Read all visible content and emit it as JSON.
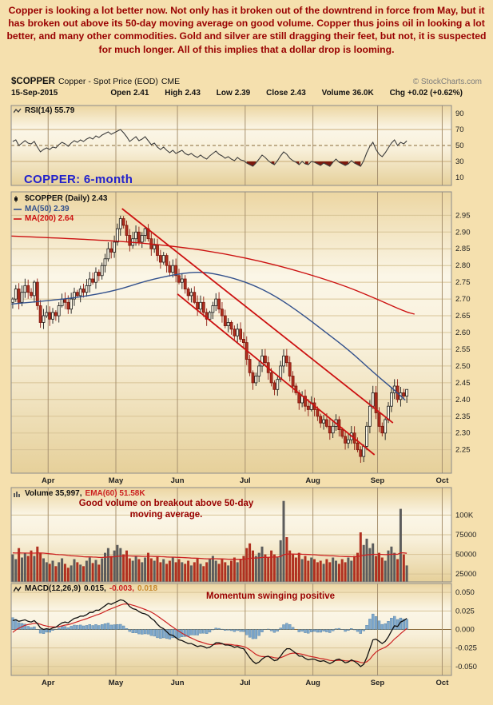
{
  "commentary": "Copper is looking a lot better now. Not only has it broken out of the downtrend in force from May, but it has broken out above its 50-day moving average on good volume. Copper thus joins oil in looking a lot better, and many other commodities. Gold and silver are still dragging their feet, but not, it is suspected for much longer. All of this implies that a dollar drop is looming.",
  "title": {
    "symbol": "$COPPER",
    "name": "Copper - Spot Price (EOD)",
    "exchange": "CME",
    "copyright": "© StockCharts.com"
  },
  "quote": {
    "date": "15-Sep-2015",
    "fields": [
      {
        "label": "Open",
        "value": "2.41"
      },
      {
        "label": "High",
        "value": "2.43"
      },
      {
        "label": "Low",
        "value": "2.39"
      },
      {
        "label": "Close",
        "value": "2.43"
      },
      {
        "label": "Volume",
        "value": "36.0K"
      },
      {
        "label": "Chg",
        "value": "+0.02 (+0.62%)"
      }
    ]
  },
  "legends": {
    "rsi": "RSI(14) 55.79",
    "price": "$COPPER (Daily) 2.43",
    "ma50": "MA(50) 2.39",
    "ma200": "MA(200) 2.64",
    "volume": "Volume 35,997,",
    "ema": "EMA(60) 51.58K",
    "macd": "MACD(12,26,9)",
    "macd_v1": "0.015,",
    "macd_v2": "-0.003,",
    "macd_v3": "0.018"
  },
  "annotations": {
    "main": "COPPER: 6-month",
    "volume": "Good volume on breakout above 50-day moving average.",
    "macd": "Momentum swinging positive"
  },
  "chart_data": {
    "type": "candlestick+indicators",
    "symbol": "$COPPER",
    "date": "15-Sep-2015",
    "x_axis": {
      "months": [
        "Apr",
        "May",
        "Jun",
        "Jul",
        "Aug",
        "Sep",
        "Oct"
      ],
      "month_slots": [
        12,
        34,
        54,
        76,
        98,
        119,
        140
      ],
      "total_slots": 143
    },
    "y_axes": {
      "rsi_ticks": [
        "90",
        "70",
        "50",
        "30",
        "10"
      ],
      "price_ticks": [
        "2.95",
        "2.90",
        "2.85",
        "2.80",
        "2.75",
        "2.70",
        "2.65",
        "2.60",
        "2.55",
        "2.50",
        "2.45",
        "2.40",
        "2.35",
        "2.30",
        "2.25"
      ],
      "volume_ticks": [
        {
          "label": "100K",
          "value_k": 100
        },
        {
          "label": "75000",
          "value_k": 75
        },
        {
          "label": "50000",
          "value_k": 50
        },
        {
          "label": "25000",
          "value_k": 25
        }
      ],
      "macd_ticks": [
        "0.050",
        "0.025",
        "0.000",
        "-0.025",
        "-0.050"
      ]
    },
    "close": [
      2.7,
      2.73,
      2.69,
      2.72,
      2.74,
      2.72,
      2.71,
      2.75,
      2.68,
      2.63,
      2.65,
      2.66,
      2.64,
      2.66,
      2.65,
      2.68,
      2.7,
      2.69,
      2.67,
      2.7,
      2.72,
      2.71,
      2.73,
      2.72,
      2.74,
      2.76,
      2.75,
      2.78,
      2.77,
      2.8,
      2.82,
      2.85,
      2.84,
      2.87,
      2.91,
      2.94,
      2.92,
      2.89,
      2.86,
      2.88,
      2.9,
      2.87,
      2.89,
      2.91,
      2.88,
      2.85,
      2.86,
      2.83,
      2.81,
      2.83,
      2.8,
      2.78,
      2.8,
      2.77,
      2.75,
      2.76,
      2.73,
      2.71,
      2.72,
      2.69,
      2.67,
      2.69,
      2.66,
      2.64,
      2.66,
      2.68,
      2.7,
      2.67,
      2.65,
      2.62,
      2.63,
      2.61,
      2.59,
      2.61,
      2.58,
      2.57,
      2.52,
      2.48,
      2.45,
      2.47,
      2.5,
      2.53,
      2.51,
      2.48,
      2.45,
      2.43,
      2.46,
      2.5,
      2.53,
      2.51,
      2.47,
      2.44,
      2.42,
      2.39,
      2.41,
      2.38,
      2.37,
      2.39,
      2.37,
      2.35,
      2.33,
      2.34,
      2.32,
      2.3,
      2.32,
      2.34,
      2.31,
      2.29,
      2.27,
      2.28,
      2.3,
      2.27,
      2.25,
      2.23,
      2.26,
      2.32,
      2.38,
      2.42,
      2.36,
      2.32,
      2.3,
      2.34,
      2.38,
      2.42,
      2.44,
      2.4,
      2.42,
      2.41,
      2.43
    ],
    "last_bar": {
      "open": 2.41,
      "high": 2.43,
      "low": 2.39,
      "close": 2.43
    },
    "rsi": [
      55,
      57,
      50,
      53,
      56,
      53,
      52,
      55,
      48,
      42,
      45,
      47,
      45,
      48,
      47,
      51,
      54,
      52,
      49,
      53,
      56,
      54,
      57,
      55,
      58,
      60,
      58,
      62,
      60,
      63,
      65,
      67,
      64,
      66,
      68,
      70,
      66,
      61,
      55,
      58,
      61,
      56,
      58,
      61,
      56,
      51,
      53,
      48,
      45,
      48,
      44,
      41,
      44,
      40,
      42,
      44,
      40,
      38,
      40,
      37,
      35,
      38,
      35,
      33,
      37,
      40,
      43,
      39,
      37,
      34,
      36,
      33,
      31,
      35,
      32,
      31,
      28,
      26,
      24,
      28,
      33,
      38,
      35,
      31,
      28,
      26,
      31,
      37,
      42,
      39,
      34,
      31,
      29,
      26,
      30,
      27,
      26,
      30,
      29,
      27,
      25,
      28,
      26,
      24,
      29,
      33,
      29,
      27,
      25,
      27,
      31,
      28,
      26,
      24,
      31,
      41,
      49,
      54,
      45,
      39,
      36,
      41,
      47,
      53,
      57,
      50,
      54,
      52,
      55.79
    ],
    "volume_k": [
      50,
      44,
      58,
      46,
      52,
      48,
      55,
      48,
      60,
      52,
      45,
      40,
      38,
      42,
      35,
      40,
      45,
      38,
      33,
      36,
      44,
      40,
      37,
      35,
      42,
      46,
      39,
      43,
      37,
      45,
      52,
      58,
      48,
      55,
      62,
      58,
      50,
      55,
      45,
      42,
      48,
      44,
      40,
      46,
      52,
      45,
      42,
      48,
      40,
      44,
      38,
      42,
      46,
      40,
      44,
      40,
      38,
      42,
      36,
      40,
      45,
      38,
      35,
      40,
      44,
      48,
      42,
      38,
      44,
      40,
      36,
      42,
      46,
      40,
      44,
      48,
      58,
      64,
      55,
      48,
      52,
      60,
      50,
      46,
      55,
      50,
      46,
      68,
      118,
      72,
      55,
      50,
      46,
      52,
      44,
      48,
      42,
      46,
      44,
      40,
      42,
      38,
      44,
      40,
      46,
      42,
      38,
      44,
      40,
      46,
      42,
      48,
      52,
      78,
      62,
      70,
      58,
      64,
      48,
      52,
      46,
      42,
      55,
      60,
      52,
      44,
      108,
      50,
      36
    ],
    "macd": [
      0.012,
      0.013,
      0.011,
      0.012,
      0.013,
      0.011,
      0.01,
      0.012,
      0.008,
      0.002,
      0.0,
      0.001,
      0.0,
      0.002,
      0.003,
      0.006,
      0.009,
      0.01,
      0.009,
      0.012,
      0.015,
      0.016,
      0.018,
      0.018,
      0.02,
      0.023,
      0.023,
      0.026,
      0.026,
      0.029,
      0.032,
      0.035,
      0.034,
      0.036,
      0.038,
      0.04,
      0.039,
      0.036,
      0.031,
      0.028,
      0.027,
      0.024,
      0.022,
      0.021,
      0.019,
      0.015,
      0.012,
      0.007,
      0.003,
      0.001,
      -0.003,
      -0.007,
      -0.008,
      -0.011,
      -0.014,
      -0.015,
      -0.017,
      -0.019,
      -0.019,
      -0.021,
      -0.023,
      -0.022,
      -0.023,
      -0.025,
      -0.024,
      -0.021,
      -0.018,
      -0.018,
      -0.019,
      -0.021,
      -0.021,
      -0.022,
      -0.024,
      -0.023,
      -0.025,
      -0.026,
      -0.032,
      -0.038,
      -0.043,
      -0.046,
      -0.044,
      -0.04,
      -0.037,
      -0.036,
      -0.039,
      -0.042,
      -0.041,
      -0.036,
      -0.03,
      -0.026,
      -0.026,
      -0.029,
      -0.032,
      -0.036,
      -0.036,
      -0.039,
      -0.041,
      -0.04,
      -0.04,
      -0.042,
      -0.043,
      -0.042,
      -0.044,
      -0.046,
      -0.044,
      -0.041,
      -0.04,
      -0.042,
      -0.045,
      -0.044,
      -0.041,
      -0.043,
      -0.046,
      -0.05,
      -0.047,
      -0.038,
      -0.026,
      -0.014,
      -0.013,
      -0.016,
      -0.019,
      -0.016,
      -0.01,
      -0.002,
      0.005,
      0.004,
      0.01,
      0.012,
      0.015
    ],
    "ma50_points": [
      [
        0,
        2.685
      ],
      [
        12,
        2.695
      ],
      [
        22,
        2.705
      ],
      [
        34,
        2.725
      ],
      [
        44,
        2.755
      ],
      [
        54,
        2.775
      ],
      [
        62,
        2.782
      ],
      [
        70,
        2.768
      ],
      [
        78,
        2.745
      ],
      [
        86,
        2.708
      ],
      [
        94,
        2.658
      ],
      [
        102,
        2.602
      ],
      [
        110,
        2.545
      ],
      [
        118,
        2.478
      ],
      [
        124,
        2.432
      ],
      [
        128,
        2.398
      ]
    ],
    "ma200_points": [
      [
        0,
        2.888
      ],
      [
        26,
        2.878
      ],
      [
        46,
        2.865
      ],
      [
        66,
        2.842
      ],
      [
        86,
        2.803
      ],
      [
        106,
        2.748
      ],
      [
        118,
        2.703
      ],
      [
        128,
        2.662
      ],
      [
        131,
        2.655
      ]
    ],
    "trendlines": [
      {
        "from": [
          36,
          2.97
        ],
        "to": [
          124,
          2.33
        ]
      },
      {
        "from": [
          54,
          2.715
        ],
        "to": [
          118,
          2.235
        ]
      }
    ],
    "colors": {
      "background": "#f5e0ae",
      "candle_down": "#b03020",
      "candle_up_fill": "#faf5e4",
      "ma50": "#33518c",
      "ma200": "#cc1111",
      "trendline": "#cc1111",
      "rsi_line": "#3c3c3c",
      "rsi_fill": "#7c190e",
      "volume_up": "#5c5c5c",
      "hist": "#7fa8cc",
      "hist_stroke": "#4a7aa0",
      "signal": "#cc2222",
      "annotation_red": "#990000",
      "annotation_blue": "#2222cc"
    }
  }
}
